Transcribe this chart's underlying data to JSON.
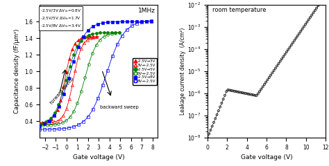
{
  "left_xlabel": "Gate voltage (V)",
  "left_ylabel": "Capacitance density (fF/μm²)",
  "left_xlim": [
    -2.5,
    8.5
  ],
  "left_ylim": [
    0.2,
    1.8
  ],
  "left_yticks": [
    0.4,
    0.6,
    0.8,
    1.0,
    1.2,
    1.4,
    1.6
  ],
  "left_xticks": [
    -2,
    -1,
    0,
    1,
    2,
    3,
    4,
    5,
    6,
    7,
    8
  ],
  "right_xlabel": "Gate voltage (V)",
  "right_ylabel": "Leakage current density  (A/cm²)",
  "right_xlim": [
    0,
    12
  ],
  "right_xticks": [
    0,
    2,
    4,
    6,
    8,
    10,
    12
  ],
  "right_ylim": [
    1e-08,
    0.01
  ],
  "infobox": "-2.5V/3V ΔVₙᵇ=0.8V\n-2.5V/5V ΔVₙᵇ=1.7V\n-2.5V/8V ΔVₙᵇ=3.4V",
  "freq_label": "1MHz",
  "right_annot": "room temperature"
}
